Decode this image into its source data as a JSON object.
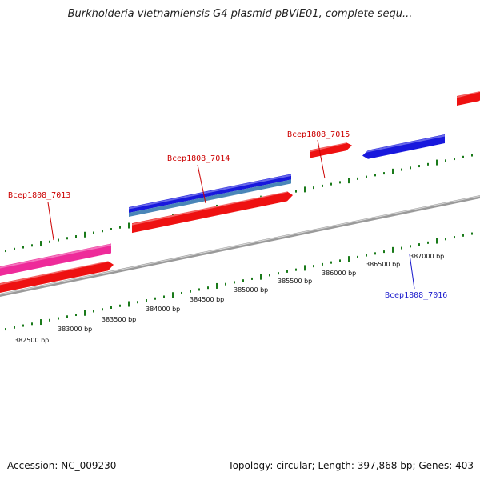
{
  "title": "Burkholderia vietnamiensis G4 plasmid pBVIE01, complete sequ...",
  "footer": {
    "accession": "Accession: NC_009230",
    "topology": "Topology: circular; Length: 397,868 bp; Genes: 403"
  },
  "colors": {
    "backbone": "#8a8a8a",
    "tick": "#1a7a1a",
    "forward_gene": "#ee1111",
    "reverse_gene": "#1818dd",
    "label_red": "#cc0000",
    "label_blue": "#1a1acc",
    "pink_gene": "#ee2b9a",
    "blue_gene_shadow": "#4a86b8"
  },
  "scale_labels": [
    "382500 bp",
    "383000 bp",
    "383500 bp",
    "384000 bp",
    "384500 bp",
    "385000 bp",
    "385500 bp",
    "386000 bp",
    "386500 bp",
    "387000 bp"
  ],
  "gene_labels": [
    {
      "id": "bcep1808-7013",
      "text": "Bcep1808_7013",
      "strand": "forward"
    },
    {
      "id": "bcep1808-7014",
      "text": "Bcep1808_7014",
      "strand": "forward"
    },
    {
      "id": "bcep1808-7015",
      "text": "Bcep1808_7015",
      "strand": "forward"
    },
    {
      "id": "bcep1808-7016",
      "text": "Bcep1808_7016",
      "strand": "reverse"
    }
  ]
}
